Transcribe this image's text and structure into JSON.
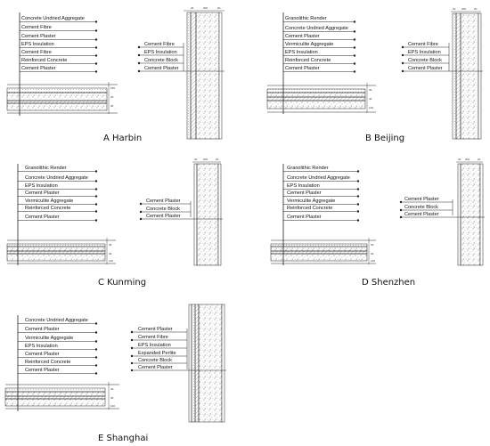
{
  "colors": {
    "line": "#1a1a1a",
    "hatch": "#444444",
    "background": "#ffffff"
  },
  "panels": [
    {
      "caption": "A Harbin",
      "roof_layers": [
        "Concrete Undried Aggregate",
        "Cement Fibre",
        "Cement Plaster",
        "EPS Insulation",
        "Cement Fibre",
        "Reinforced Concrete",
        "Cement Plaster"
      ],
      "wall_layers": [
        "Cement Fibre",
        "EPS Insulation",
        "Concrete Block",
        "Cement Plaster"
      ]
    },
    {
      "caption": "B Beijing",
      "roof_layers": [
        "Granolithic Render",
        "Concrete Undried Aggregate",
        "Cement Plaster",
        "Vermiculite Aggregate",
        "EPS Insulation",
        "Reinforced Concrete",
        "Cement Plaster"
      ],
      "wall_layers": [
        "Cement Fibre",
        "EPS Insulation",
        "Concrete Block",
        "Cement Plaster"
      ]
    },
    {
      "caption": "C Kunming",
      "roof_layers": [
        "Granolithic Render",
        "Concrete Undried Aggregate",
        "EPS Insulation",
        "Cement Plaster",
        "Vermiculite Aggregate",
        "Reinforced Concrete",
        "Cement Plaster"
      ],
      "wall_layers": [
        "Cement Plaster",
        "Concrete Block",
        "Cement Plaster"
      ]
    },
    {
      "caption": "D Shenzhen",
      "roof_layers": [
        "Granolithic Render",
        "Concrete Undried Aggregate",
        "EPS Insulation",
        "Cement Plaster",
        "Vermiculite Aggregate",
        "Reinforced Concrete",
        "Cement Plaster"
      ],
      "wall_layers": [
        "Cement Plaster",
        "Concrete Block",
        "Cement Plaster"
      ]
    },
    {
      "caption": "E Shanghai",
      "roof_layers": [
        "Concrete Undried Aggregate",
        "Cement Plaster",
        "Vermiculite Aggregate",
        "EPS Insulation",
        "Cement Plaster",
        "Reinforced Concrete",
        "Cement Plaster"
      ],
      "wall_layers": [
        "Cement Plaster",
        "Cement Fibre",
        "EPS Insulation",
        "Expanded Perlite",
        "Concrete Block",
        "Cement Plaster"
      ]
    }
  ]
}
